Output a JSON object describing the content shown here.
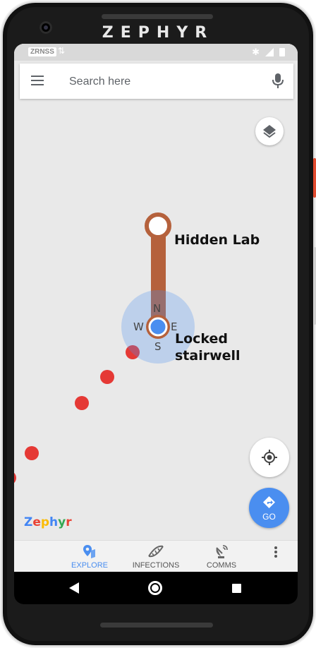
{
  "device": {
    "brand": "ZEPHYR"
  },
  "status_bar": {
    "carrier": "ZRNSS",
    "data_icon": "data-arrows-icon",
    "icons": [
      "bluetooth-icon",
      "signal-icon",
      "battery-icon"
    ]
  },
  "search": {
    "placeholder": "Search here",
    "menu_icon": "hamburger-menu-icon",
    "mic_icon": "microphone-icon"
  },
  "map": {
    "markers": [
      {
        "label": "Hidden Lab"
      },
      {
        "label_line1": "Locked",
        "label_line2": "stairwell"
      }
    ],
    "compass": {
      "n": "N",
      "e": "E",
      "s": "S",
      "w": "W"
    },
    "watermark": "Zephyr",
    "watermark_colors": [
      "#4285f4",
      "#ea4335",
      "#fbbc05",
      "#4285f4",
      "#34a853",
      "#ea4335"
    ],
    "route_color": "#b5613c",
    "trail_color": "#e53935",
    "location_color": "#4a8ef0"
  },
  "controls": {
    "layers_icon": "layers-icon",
    "locate_icon": "my-location-icon",
    "go_icon": "directions-icon",
    "go_label": "GO"
  },
  "bottom_nav": {
    "items": [
      {
        "label": "EXPLORE",
        "icon": "explore-pin-icon",
        "active": true
      },
      {
        "label": "INFECTIONS",
        "icon": "dna-icon",
        "active": false
      },
      {
        "label": "COMMS",
        "icon": "satellite-dish-icon",
        "active": false
      }
    ],
    "more_icon": "more-vertical-icon"
  },
  "system_nav": {
    "icons": [
      "back-icon",
      "home-icon",
      "recents-icon"
    ]
  }
}
